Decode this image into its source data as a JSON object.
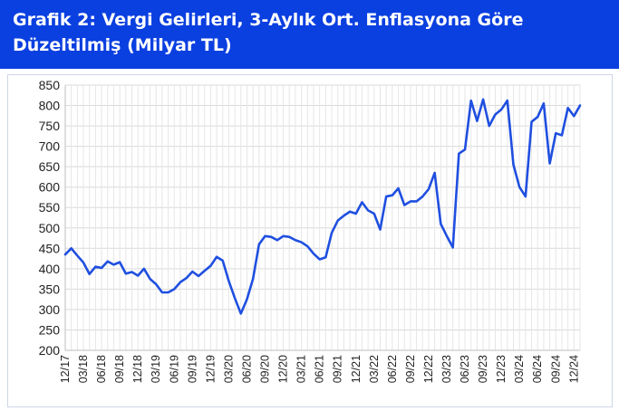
{
  "header": {
    "title": "Grafik 2: Vergi Gelirleri, 3-Aylık Ort. Enflasyona Göre Düzeltilmiş (Milyar TL)",
    "background": "#0a3fe0"
  },
  "chart_data": {
    "type": "line",
    "title": "Grafik 2: Vergi Gelirleri, 3-Aylık Ort. Enflasyona Göre Düzeltilmiş (Milyar TL)",
    "xlabel": "",
    "ylabel": "",
    "ylim": [
      200,
      850
    ],
    "yticks": [
      200,
      250,
      300,
      350,
      400,
      450,
      500,
      550,
      600,
      650,
      700,
      750,
      800,
      850
    ],
    "grid": true,
    "line_color": "#1f4fe0",
    "x_tick_labels": [
      "12/17",
      "03/18",
      "06/18",
      "09/18",
      "12/18",
      "03/19",
      "06/19",
      "09/19",
      "12/19",
      "03/20",
      "06/20",
      "09/20",
      "12/20",
      "03/21",
      "06/21",
      "09/21",
      "12/21",
      "03/22",
      "06/22",
      "09/22",
      "12/22",
      "03/23",
      "06/23",
      "09/23",
      "12/23",
      "03/24",
      "06/24",
      "09/24",
      "12/24"
    ],
    "series": [
      {
        "start": "12/17",
        "frequency": "monthly",
        "values": [
          435,
          450,
          432,
          415,
          387,
          405,
          402,
          418,
          410,
          416,
          388,
          392,
          383,
          400,
          375,
          362,
          342,
          342,
          350,
          367,
          377,
          393,
          382,
          395,
          407,
          429,
          420,
          370,
          328,
          290,
          325,
          375,
          460,
          480,
          478,
          470,
          480,
          478,
          470,
          465,
          455,
          437,
          423,
          428,
          488,
          518,
          530,
          540,
          535,
          563,
          543,
          535,
          496,
          577,
          580,
          597,
          556,
          565,
          565,
          577,
          595,
          635,
          510,
          480,
          452,
          682,
          692,
          812,
          762,
          815,
          750,
          778,
          790,
          812,
          655,
          600,
          577,
          760,
          772,
          805,
          658,
          732,
          727,
          794,
          774,
          800
        ]
      }
    ]
  }
}
